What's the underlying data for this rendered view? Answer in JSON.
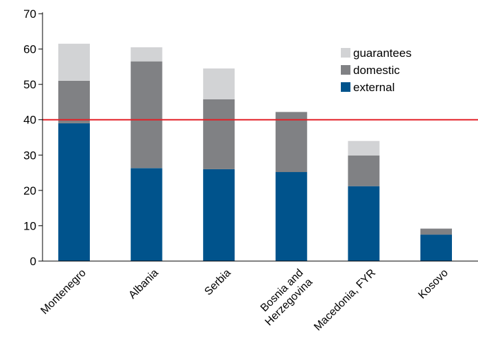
{
  "chart_data": {
    "type": "bar",
    "stacked": true,
    "categories": [
      "Montenegro",
      "Albania",
      "Serbia",
      "Bosnia and Herzegovina",
      "Macedonia, FYR",
      "Kosovo"
    ],
    "category_lines": [
      [
        "Montenegro"
      ],
      [
        "Albania"
      ],
      [
        "Serbia"
      ],
      [
        "Bosnia and",
        "Herzegovina"
      ],
      [
        "Macedonia, FYR"
      ],
      [
        "Kosovo"
      ]
    ],
    "series": [
      {
        "name": "external",
        "values": [
          39,
          26.3,
          26,
          25.2,
          21.2,
          7.5
        ],
        "color": "#00538c"
      },
      {
        "name": "domestic",
        "values": [
          12,
          30.2,
          19.8,
          17,
          8.7,
          1.7
        ],
        "color": "#808184"
      },
      {
        "name": "guarantees",
        "values": [
          10.5,
          4,
          8.7,
          0,
          4.1,
          0
        ],
        "color": "#d2d3d5"
      }
    ],
    "legend_order": [
      "guarantees",
      "domestic",
      "external"
    ],
    "legend_position": "top-right",
    "reference_line": {
      "value": 40,
      "color": "#e31f26"
    },
    "ylim": [
      0,
      70
    ],
    "yticks": [
      0,
      10,
      20,
      30,
      40,
      50,
      60,
      70
    ],
    "title": "",
    "xlabel": "",
    "ylabel": "",
    "grid": false
  }
}
